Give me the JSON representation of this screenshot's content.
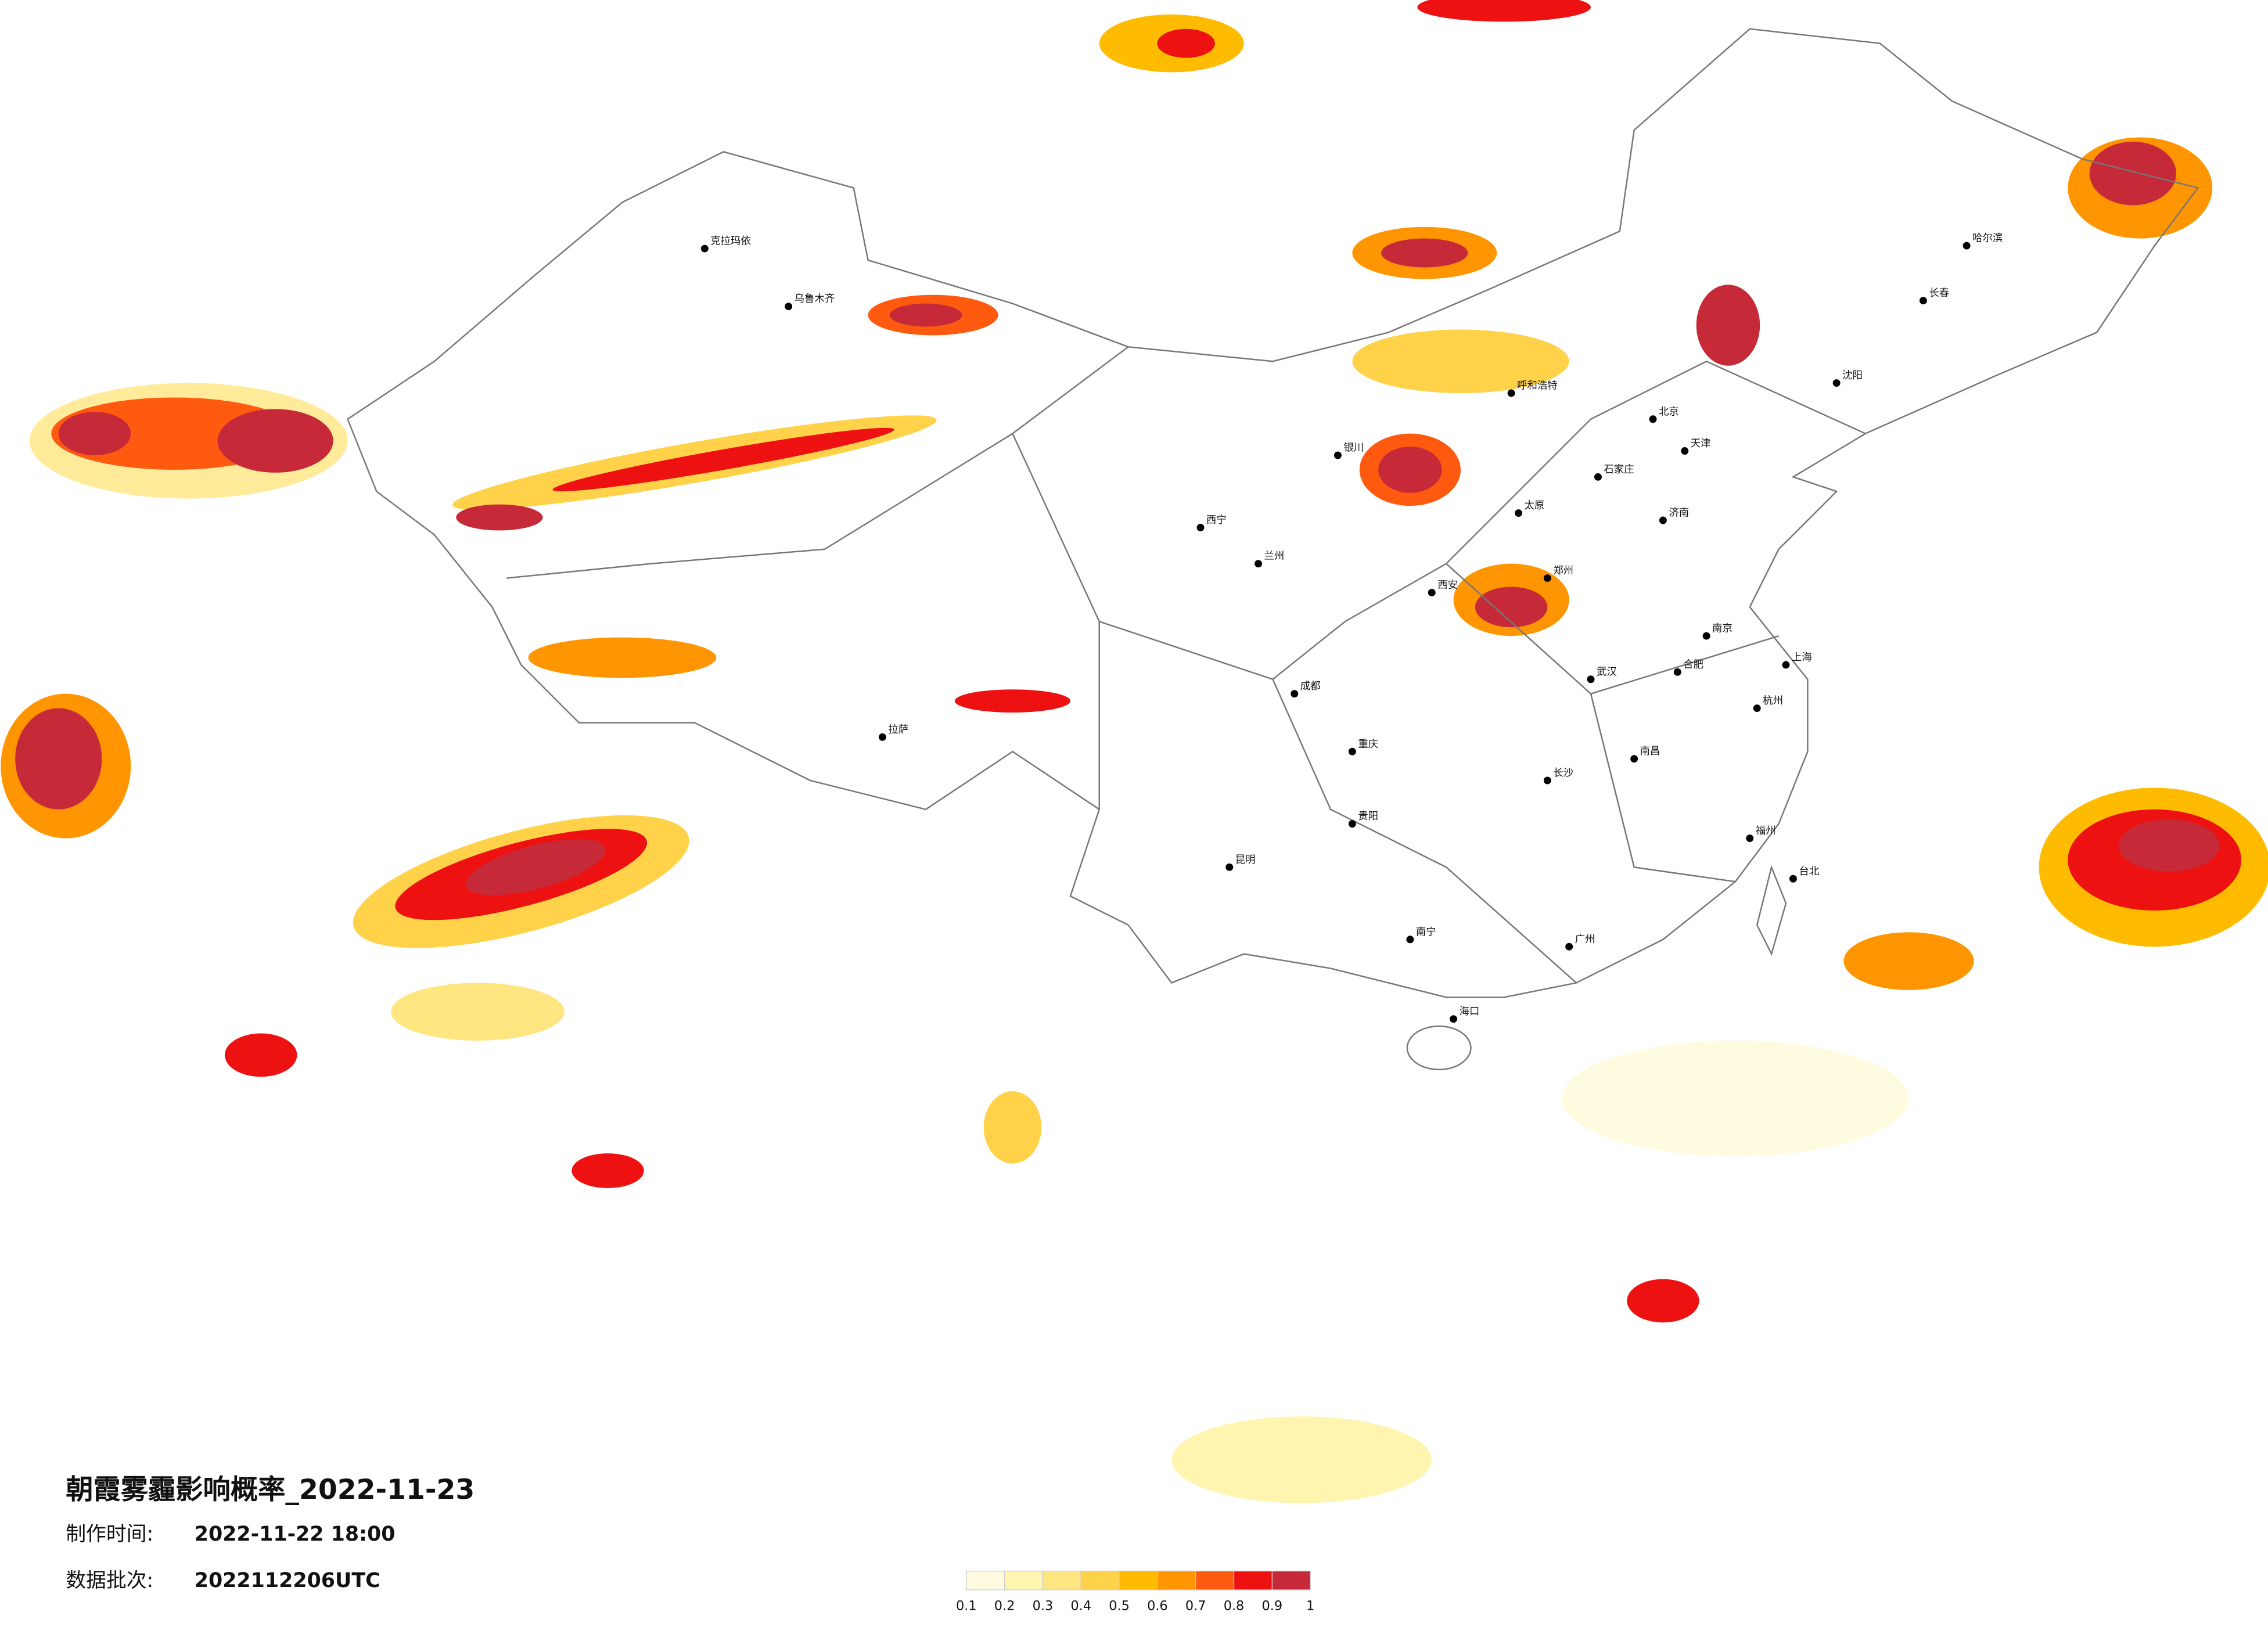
{
  "header": {
    "title": "朝霞雾霾影响概率_2022-11-23"
  },
  "info": {
    "made_label": "制作时间:",
    "made_value": "2022-11-22 18:00",
    "batch_label": "数据批次:",
    "batch_value": "2022112206UTC"
  },
  "legend": {
    "colors": [
      "#fffbe0",
      "#fff4b0",
      "#ffe680",
      "#ffd24a",
      "#ffbb00",
      "#ff9500",
      "#ff5a10",
      "#ee1111",
      "#c62a38"
    ],
    "ticks": [
      0.1,
      0.2,
      0.3,
      0.4,
      0.5,
      0.6,
      0.7,
      0.8,
      0.9,
      1
    ]
  },
  "cities": [
    "克拉玛依",
    "乌鲁木齐",
    "哈尔滨",
    "长春",
    "沈阳",
    "北京",
    "天津",
    "石家庄",
    "太原",
    "郑州",
    "西安",
    "兰州",
    "西宁",
    "银川",
    "呼和浩特",
    "济南",
    "成都",
    "重庆",
    "武汉",
    "南京",
    "上海",
    "杭州",
    "合肥",
    "长沙",
    "南昌",
    "福州",
    "广州",
    "南宁",
    "昆明",
    "贵阳",
    "拉萨",
    "海口",
    "台北"
  ]
}
